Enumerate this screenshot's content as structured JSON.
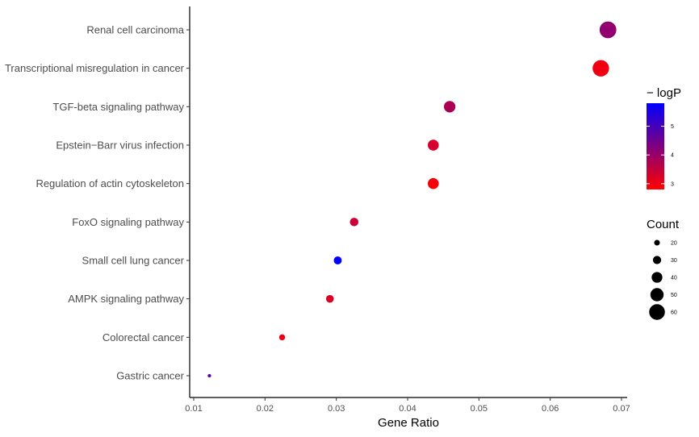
{
  "chart_data": {
    "type": "scatter",
    "xlabel": "Gene Ratio",
    "ylabel": "",
    "xlim": [
      0.01,
      0.07
    ],
    "x_ticks": [
      "0.01",
      "0.02",
      "0.03",
      "0.04",
      "0.05",
      "0.06",
      "0.07"
    ],
    "grid": false,
    "categories": [
      "Renal cell carcinoma",
      "Transcriptional misregulation in cancer",
      "TGF-beta signaling pathway",
      "Epstein−Barr virus infection",
      "Regulation of actin cytoskeleton",
      "FoxO signaling pathway",
      "Small cell lung cancer",
      "AMPK signaling pathway",
      "Colorectal cancer",
      "Gastric cancer"
    ],
    "points": [
      {
        "category": "Renal cell carcinoma",
        "gene_ratio": 0.0681,
        "count": 64,
        "logP": 4.1
      },
      {
        "category": "Transcriptional misregulation in cancer",
        "gene_ratio": 0.0671,
        "count": 63,
        "logP": 3.0
      },
      {
        "category": "TGF-beta signaling pathway",
        "gene_ratio": 0.0459,
        "count": 43,
        "logP": 3.8
      },
      {
        "category": "Epstein−Barr virus infection",
        "gene_ratio": 0.0436,
        "count": 41,
        "logP": 3.3
      },
      {
        "category": "Regulation of actin cytoskeleton",
        "gene_ratio": 0.0436,
        "count": 41,
        "logP": 2.9
      },
      {
        "category": "FoxO signaling pathway",
        "gene_ratio": 0.0325,
        "count": 31,
        "logP": 3.4
      },
      {
        "category": "Small cell lung cancer",
        "gene_ratio": 0.0302,
        "count": 29,
        "logP": 5.8
      },
      {
        "category": "AMPK signaling pathway",
        "gene_ratio": 0.0291,
        "count": 28,
        "logP": 3.2
      },
      {
        "category": "Colorectal cancer",
        "gene_ratio": 0.0224,
        "count": 21,
        "logP": 3.0
      },
      {
        "category": "Gastric cancer",
        "gene_ratio": 0.0122,
        "count": 11,
        "logP": 4.6
      }
    ],
    "color_legend": {
      "title": "− logP",
      "ticks": [
        "3",
        "4",
        "5"
      ],
      "tick_values": [
        3,
        4,
        5
      ],
      "range": [
        2.8,
        5.8
      ],
      "low_color": "#ff0000",
      "high_color": "#0000ff"
    },
    "size_legend": {
      "title": "Count",
      "values": [
        20,
        30,
        40,
        50,
        60
      ],
      "labels": [
        "20",
        "30",
        "40",
        "50",
        "60"
      ],
      "color": "#000000"
    }
  }
}
